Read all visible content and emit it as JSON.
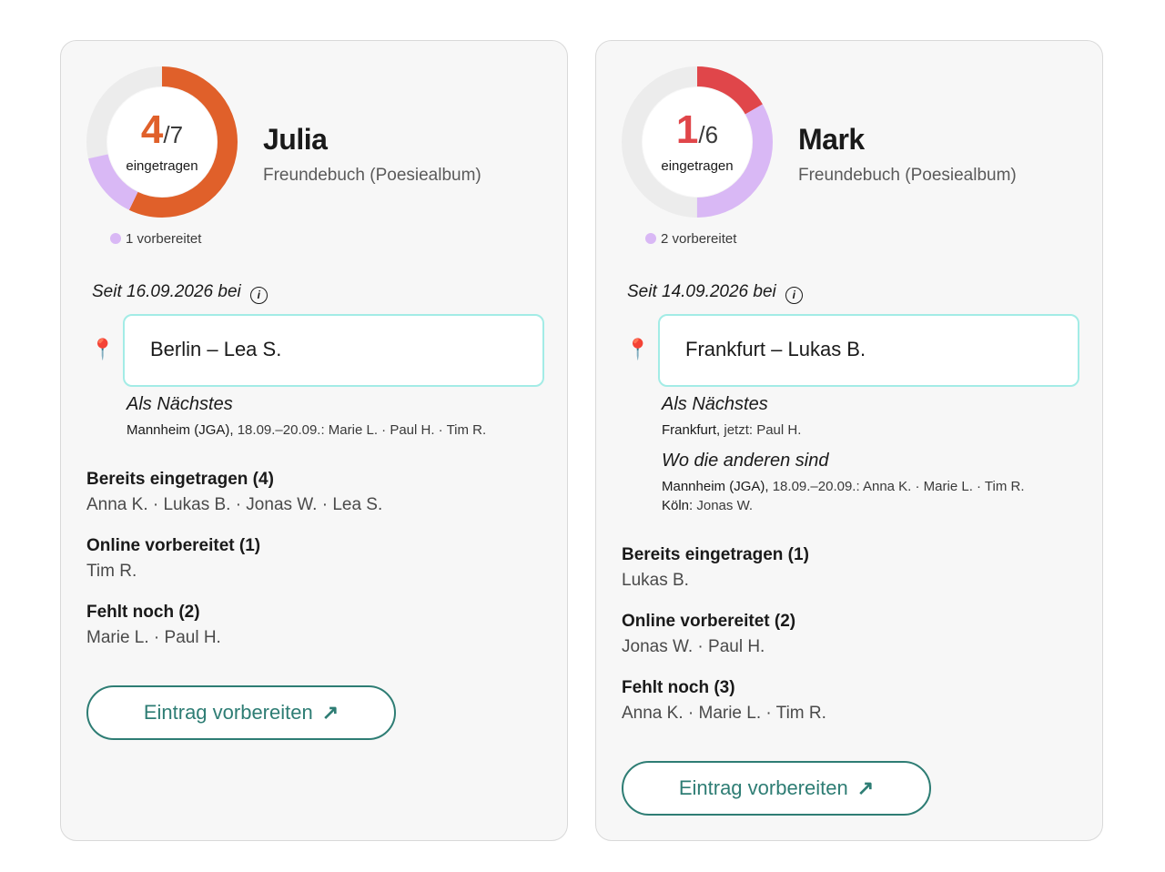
{
  "cards": [
    {
      "name": "Julia",
      "subtitle": "Freundebuch (Poesiealbum)",
      "progress": {
        "done": "4",
        "total": "/7",
        "label": "eingetragen",
        "done_count": 4,
        "prepared_count": 1,
        "total_count": 7,
        "done_color": "#e0602a",
        "prepared_color": "#d9b8f5",
        "count_color": "#e0602a"
      },
      "prepared_legend": "1 vorbereitet",
      "since": "Seit 16.09.2026 bei",
      "location": "Berlin – Lea S.",
      "next": {
        "title": "Als Nächstes",
        "place": "Mannheim (JGA),",
        "detail": " 18.09.–20.09.: Marie L. · Paul H. · Tim R."
      },
      "groups": [
        {
          "title": "Bereits eingetragen (4)",
          "names": "Anna K. · Lukas B. · Jonas W. · Lea S."
        },
        {
          "title": "Online vorbereitet (1)",
          "names": "Tim R."
        },
        {
          "title": "Fehlt noch (2)",
          "names": "Marie L. · Paul H."
        }
      ],
      "cta": "Eintrag vorbereiten",
      "cta_icon": "arrow-up-right-icon"
    },
    {
      "name": "Mark",
      "subtitle": "Freundebuch (Poesiealbum)",
      "progress": {
        "done": "1",
        "total": "/6",
        "label": "eingetragen",
        "done_count": 1,
        "prepared_count": 2,
        "total_count": 6,
        "done_color": "#e0464a",
        "prepared_color": "#d9b8f5",
        "count_color": "#e0464a"
      },
      "prepared_legend": "2 vorbereitet",
      "since": "Seit 14.09.2026 bei",
      "location": "Frankfurt – Lukas B.",
      "next": {
        "title": "Als Nächstes",
        "place": "Frankfurt,",
        "detail": " jetzt: Paul H."
      },
      "others": {
        "title": "Wo die anderen sind",
        "line1_place": "Mannheim (JGA),",
        "line1_detail": " 18.09.–20.09.: Anna K. · Marie L. · Tim R.",
        "line2_place": "Köln:",
        "line2_detail": " Jonas W."
      },
      "groups": [
        {
          "title": "Bereits eingetragen (1)",
          "names": "Lukas B."
        },
        {
          "title": "Online vorbereitet (2)",
          "names": "Jonas W. · Paul H."
        },
        {
          "title": "Fehlt noch (3)",
          "names": "Anna K. · Marie L. · Tim R."
        }
      ],
      "cta": "Eintrag vorbereiten",
      "cta_icon": "arrow-up-right-icon"
    }
  ],
  "track_color": "#ececec"
}
